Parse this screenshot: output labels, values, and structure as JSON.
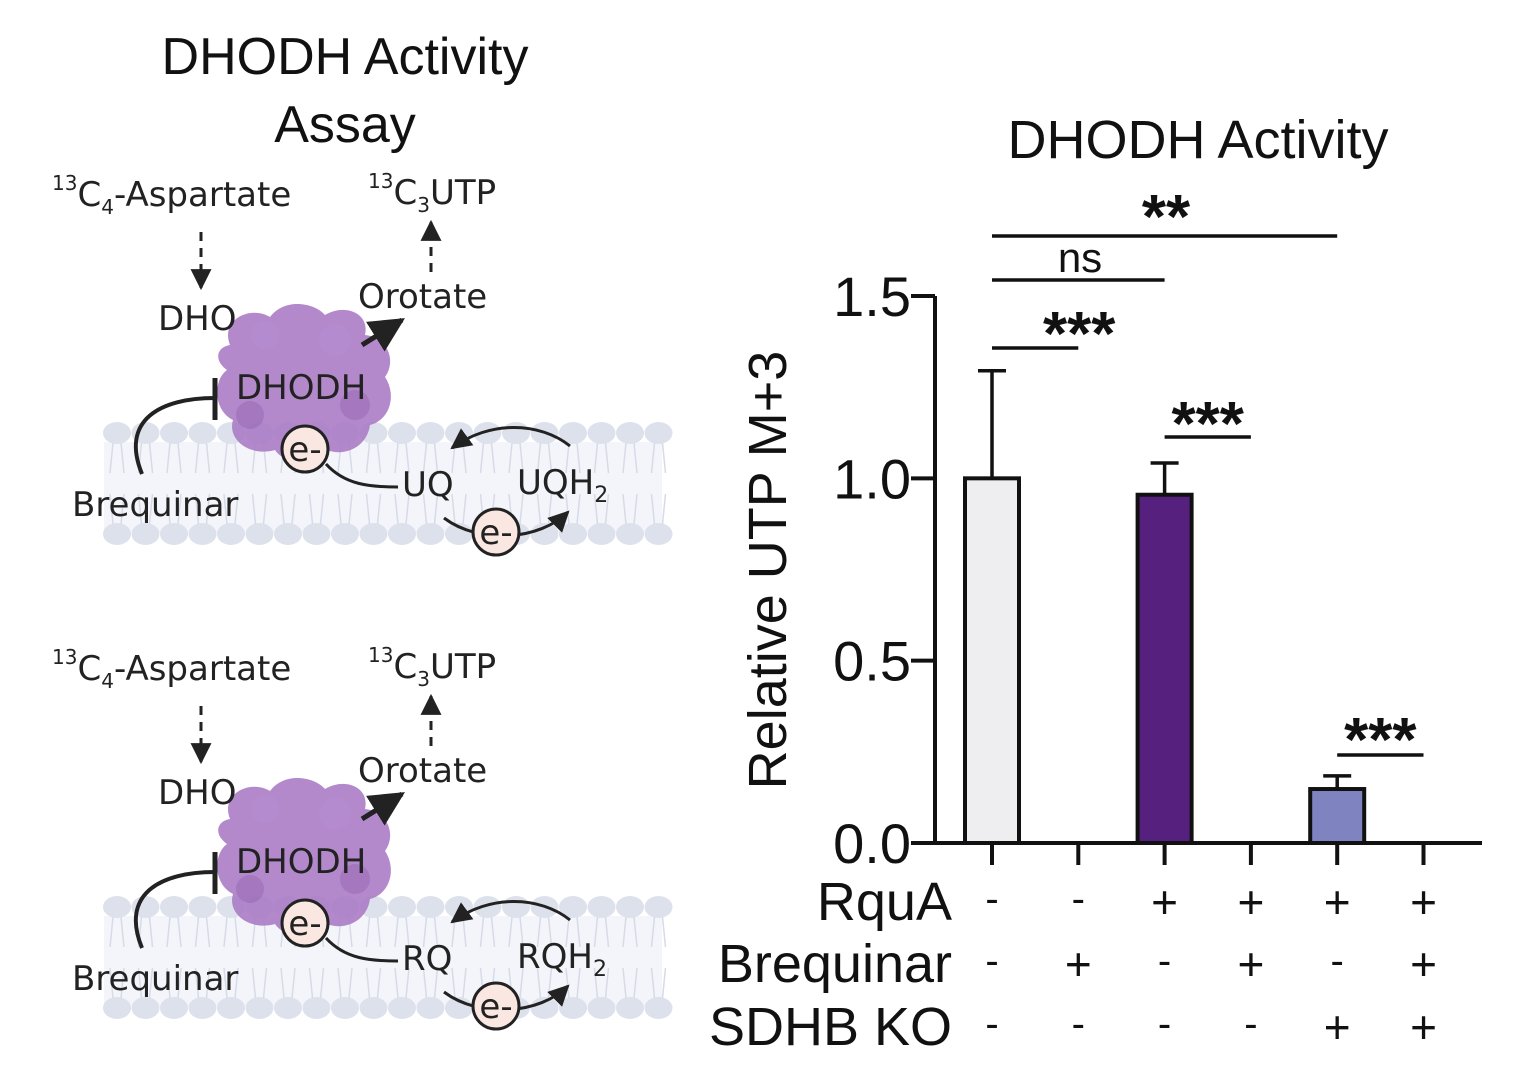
{
  "schematic": {
    "title_line1": "DHODH Activity",
    "title_line2": "Assay",
    "panels": [
      {
        "aspartate_sup": "13",
        "aspartate_main": "C",
        "aspartate_sub": "4",
        "aspartate_rest": "-Aspartate",
        "utp_sup": "13",
        "utp_main": "C",
        "utp_sub": "3",
        "utp_rest": "UTP",
        "dho": "DHO",
        "orotate": "Orotate",
        "enzyme": "DHODH",
        "inhibitor": "Brequinar",
        "electron": "e-",
        "quinone": "UQ",
        "quinol_main": "UQH",
        "quinol_sub": "2"
      },
      {
        "aspartate_sup": "13",
        "aspartate_main": "C",
        "aspartate_sub": "4",
        "aspartate_rest": "-Aspartate",
        "utp_sup": "13",
        "utp_main": "C",
        "utp_sub": "3",
        "utp_rest": "UTP",
        "dho": "DHO",
        "orotate": "Orotate",
        "enzyme": "DHODH",
        "inhibitor": "Brequinar",
        "electron": "e-",
        "quinone": "RQ",
        "quinol_main": "RQH",
        "quinol_sub": "2"
      }
    ],
    "colors": {
      "enzyme": "#a979c4",
      "membrane": "#dde1ec",
      "electron_fill": "#fbe7e1"
    }
  },
  "chart_data": {
    "type": "bar",
    "title": "DHODH Activity",
    "ylabel": "Relative UTP M+3",
    "ylim": [
      0,
      1.5
    ],
    "yticks": [
      "0.0",
      "0.5",
      "1.0",
      "1.5"
    ],
    "condition_labels": [
      "RquA",
      "Brequinar",
      "SDHB KO"
    ],
    "conditions": [
      [
        "-",
        "-",
        "+",
        "+",
        "+",
        "+"
      ],
      [
        "-",
        "+",
        "-",
        "+",
        "-",
        "+"
      ],
      [
        "-",
        "-",
        "-",
        "-",
        "+",
        "+"
      ]
    ],
    "values": [
      1.0,
      0.0,
      0.955,
      0.0,
      0.148,
      0.0
    ],
    "errors": [
      0.295,
      0.0,
      0.087,
      0.0,
      0.036,
      0.0
    ],
    "colors": [
      "#eeeef1",
      "#ffffff",
      "#55207e",
      "#ffffff",
      "#7f84c1",
      "#ffffff"
    ],
    "significance": [
      {
        "from": 0,
        "to": 1,
        "label": "***"
      },
      {
        "from": 0,
        "to": 2,
        "label": "ns"
      },
      {
        "from": 0,
        "to": 4,
        "label": "**"
      },
      {
        "from": 2,
        "to": 3,
        "label": "***"
      },
      {
        "from": 4,
        "to": 5,
        "label": "***"
      }
    ]
  }
}
